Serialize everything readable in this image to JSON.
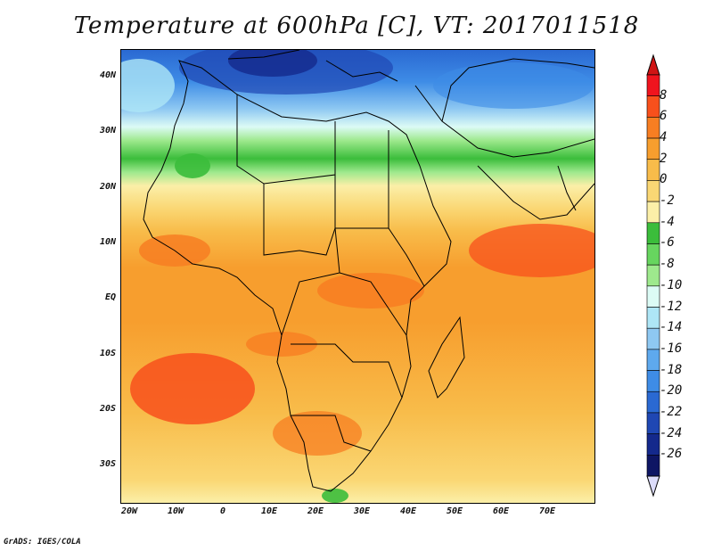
{
  "title": "Temperature at 600hPa [C], VT: 2017011518",
  "footer": "GrADS: IGES/COLA",
  "map": {
    "region": "Africa",
    "lat_labels": [
      "40N",
      "30N",
      "20N",
      "10N",
      "EQ",
      "10S",
      "20S",
      "30S"
    ],
    "lon_labels": [
      "20W",
      "10W",
      "0",
      "10E",
      "20E",
      "30E",
      "40E",
      "50E",
      "60E",
      "70E"
    ]
  },
  "colorbar": {
    "levels": [
      "8",
      "6",
      "4",
      "2",
      "0",
      "-2",
      "-4",
      "-6",
      "-8",
      "-10",
      "-12",
      "-14",
      "-16",
      "-18",
      "-20",
      "-22",
      "-24",
      "-26"
    ],
    "colors": [
      "#f0141e",
      "#f8501c",
      "#f77e22",
      "#f79e2e",
      "#f8bc4a",
      "#fad774",
      "#fbefa8",
      "#3bbd3b",
      "#67d55f",
      "#9ee98d",
      "#dcfbf5",
      "#aee6f6",
      "#8ec8f2",
      "#5ea9ee",
      "#3e8ce6",
      "#2a69d2",
      "#1f47b3",
      "#14298c",
      "#0e1664"
    ],
    "over_color": "#d01414",
    "under_color": "#dcdcfa"
  }
}
